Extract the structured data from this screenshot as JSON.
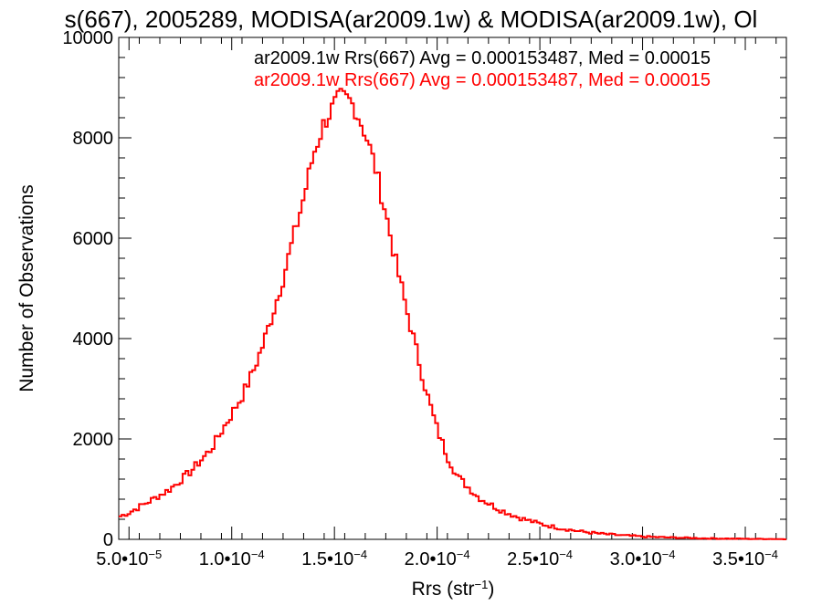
{
  "chart_data": {
    "type": "histogram-step",
    "title": "s(667), 2005289, MODISA(ar2009.1w) & MODISA(ar2009.1w), Ol",
    "xlabel_base": "Rrs (str",
    "xlabel_exp": "−1",
    "xlabel_close": ")",
    "ylabel": "Number of Observations",
    "xlim": [
      4.5e-05,
      0.00037
    ],
    "ylim": [
      0,
      10000
    ],
    "y_ticks": [
      0,
      2000,
      4000,
      6000,
      8000,
      10000
    ],
    "y_tick_labels": [
      "0",
      "2000",
      "4000",
      "6000",
      "8000",
      "10000"
    ],
    "x_ticks": [
      5e-05,
      0.0001,
      0.00015,
      0.0002,
      0.00025,
      0.0003,
      0.00035
    ],
    "x_tick_labels": [
      {
        "mant": "5.0•10",
        "exp": "−5"
      },
      {
        "mant": "1.0•10",
        "exp": "−4"
      },
      {
        "mant": "1.5•10",
        "exp": "−4"
      },
      {
        "mant": "2.0•10",
        "exp": "−4"
      },
      {
        "mant": "2.5•10",
        "exp": "−4"
      },
      {
        "mant": "3.0•10",
        "exp": "−4"
      },
      {
        "mant": "3.5•10",
        "exp": "−4"
      }
    ],
    "legend": [
      {
        "text": "ar2009.1w Rrs(667) Avg = 0.000153487, Med = 0.00015",
        "color": "#000000"
      },
      {
        "text": "ar2009.1w Rrs(667) Avg = 0.000153487, Med = 0.00015",
        "color": "#ff0000"
      }
    ],
    "series": [
      {
        "color": "#ff0000",
        "x": [
          4.5e-05,
          5e-05,
          6e-05,
          7e-05,
          8e-05,
          9e-05,
          0.0001,
          0.000105,
          0.00011,
          0.000115,
          0.00012,
          0.000125,
          0.00013,
          0.000135,
          0.00014,
          0.000145,
          0.00015,
          0.000153,
          0.000157,
          0.00016,
          0.000165,
          0.00017,
          0.000175,
          0.00018,
          0.000185,
          0.00019,
          0.000195,
          0.0002,
          0.000205,
          0.00021,
          0.00022,
          0.00023,
          0.00024,
          0.00025,
          0.00026,
          0.00027,
          0.00028,
          0.00029,
          0.0003,
          0.00031,
          0.00032,
          0.00033,
          0.00034,
          0.00035,
          0.00036,
          0.00037
        ],
        "y": [
          450,
          530,
          760,
          1000,
          1350,
          1800,
          2500,
          2850,
          3300,
          3850,
          4500,
          5200,
          6000,
          6800,
          7700,
          8300,
          8650,
          8800,
          8750,
          8600,
          8100,
          7400,
          6500,
          5500,
          4600,
          3750,
          2900,
          2200,
          1650,
          1250,
          840,
          600,
          430,
          310,
          220,
          155,
          110,
          80,
          55,
          40,
          30,
          20,
          15,
          10,
          8,
          5
        ]
      }
    ]
  }
}
